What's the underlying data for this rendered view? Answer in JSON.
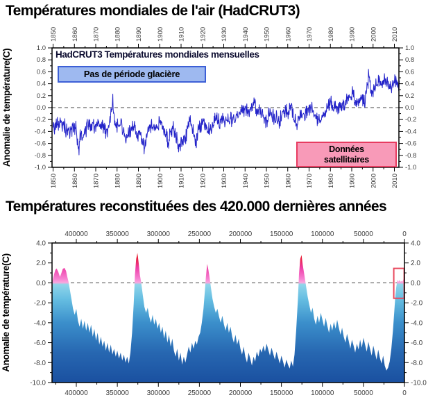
{
  "page": {
    "background": "#ffffff"
  },
  "shared": {
    "ylabel": "Anomalie de température(C)",
    "axis_color": "#000000",
    "tick_label_color": "#3c3c3c",
    "zero_line_style": "dashed"
  },
  "chart_data": [
    {
      "type": "line",
      "title": "Températures mondiales de l'air (HadCRUT3)",
      "xlabel": "",
      "ylabel": "Anomalie de température(C)",
      "x_ticks": [
        1850,
        1860,
        1870,
        1880,
        1890,
        1900,
        1910,
        1920,
        1930,
        1940,
        1950,
        1960,
        1970,
        1980,
        1990,
        2000,
        2010
      ],
      "y_ticks": [
        1.0,
        0.8,
        0.6,
        0.4,
        0.2,
        0.0,
        -0.2,
        -0.4,
        -0.6,
        -0.8,
        -1.0
      ],
      "xlim": [
        1849.5,
        2012.5
      ],
      "ylim": [
        -1.0,
        1.0
      ],
      "grid": false,
      "legend": "none",
      "line_color": "#2323c9",
      "zero_line": 0.0,
      "noise_amplitude": 0.16,
      "annotations": {
        "series_label": {
          "text": "HadCRUT3 Températures mondiales mensuelles",
          "color": "#0d0d30"
        },
        "no_ice": {
          "text": "Pas de période glacière",
          "fill": "#9eb9f0",
          "border": "#3c5fd6"
        },
        "satellite": {
          "line1": "Données",
          "line2": "satellitaires",
          "fill": "#f89ab8",
          "border": "#e73b60",
          "x_from": 1978,
          "x_to": 2012
        }
      },
      "anchors": [
        [
          1850,
          -0.35
        ],
        [
          1852,
          -0.28
        ],
        [
          1854,
          -0.25
        ],
        [
          1856,
          -0.35
        ],
        [
          1858,
          -0.4
        ],
        [
          1860,
          -0.3
        ],
        [
          1861,
          -0.4
        ],
        [
          1862,
          -0.75
        ],
        [
          1863,
          -0.35
        ],
        [
          1864,
          -0.5
        ],
        [
          1866,
          -0.3
        ],
        [
          1868,
          -0.25
        ],
        [
          1870,
          -0.3
        ],
        [
          1872,
          -0.25
        ],
        [
          1874,
          -0.38
        ],
        [
          1876,
          -0.4
        ],
        [
          1877,
          -0.08
        ],
        [
          1878,
          0.12
        ],
        [
          1879,
          -0.3
        ],
        [
          1880,
          -0.3
        ],
        [
          1882,
          -0.28
        ],
        [
          1884,
          -0.55
        ],
        [
          1886,
          -0.42
        ],
        [
          1888,
          -0.32
        ],
        [
          1890,
          -0.45
        ],
        [
          1892,
          -0.55
        ],
        [
          1893,
          -0.7
        ],
        [
          1894,
          -0.5
        ],
        [
          1896,
          -0.28
        ],
        [
          1898,
          -0.38
        ],
        [
          1900,
          -0.22
        ],
        [
          1902,
          -0.38
        ],
        [
          1904,
          -0.55
        ],
        [
          1906,
          -0.32
        ],
        [
          1908,
          -0.55
        ],
        [
          1909,
          -0.68
        ],
        [
          1910,
          -0.55
        ],
        [
          1912,
          -0.48
        ],
        [
          1914,
          -0.25
        ],
        [
          1916,
          -0.4
        ],
        [
          1917,
          -0.62
        ],
        [
          1918,
          -0.4
        ],
        [
          1920,
          -0.3
        ],
        [
          1922,
          -0.32
        ],
        [
          1924,
          -0.32
        ],
        [
          1926,
          -0.15
        ],
        [
          1928,
          -0.25
        ],
        [
          1930,
          -0.18
        ],
        [
          1932,
          -0.2
        ],
        [
          1934,
          -0.18
        ],
        [
          1936,
          -0.18
        ],
        [
          1938,
          -0.05
        ],
        [
          1940,
          -0.02
        ],
        [
          1942,
          -0.05
        ],
        [
          1944,
          0.08
        ],
        [
          1946,
          -0.05
        ],
        [
          1948,
          -0.12
        ],
        [
          1950,
          -0.22
        ],
        [
          1952,
          -0.05
        ],
        [
          1954,
          -0.18
        ],
        [
          1956,
          -0.25
        ],
        [
          1958,
          -0.02
        ],
        [
          1960,
          -0.08
        ],
        [
          1962,
          -0.02
        ],
        [
          1964,
          -0.28
        ],
        [
          1966,
          -0.12
        ],
        [
          1968,
          -0.12
        ],
        [
          1970,
          -0.02
        ],
        [
          1972,
          -0.05
        ],
        [
          1974,
          -0.22
        ],
        [
          1976,
          -0.18
        ],
        [
          1978,
          -0.05
        ],
        [
          1980,
          0.1
        ],
        [
          1982,
          0.02
        ],
        [
          1984,
          -0.02
        ],
        [
          1986,
          0.05
        ],
        [
          1988,
          0.15
        ],
        [
          1990,
          0.25
        ],
        [
          1992,
          0.08
        ],
        [
          1994,
          0.15
        ],
        [
          1996,
          0.12
        ],
        [
          1997,
          0.3
        ],
        [
          1998,
          0.55
        ],
        [
          1999,
          0.25
        ],
        [
          2000,
          0.28
        ],
        [
          2002,
          0.45
        ],
        [
          2004,
          0.42
        ],
        [
          2006,
          0.45
        ],
        [
          2008,
          0.32
        ],
        [
          2010,
          0.48
        ],
        [
          2011,
          0.42
        ],
        [
          2012.5,
          0.3
        ]
      ]
    },
    {
      "type": "area",
      "title": "Températures reconstituées des 420.000 dernières années",
      "xlabel": "",
      "ylabel": "Anomalie de température(C)",
      "x_ticks": [
        400000,
        350000,
        300000,
        250000,
        200000,
        150000,
        100000,
        50000,
        0
      ],
      "y_ticks": [
        4.0,
        2.0,
        0.0,
        -2.0,
        -4.0,
        -6.0,
        -8.0,
        -10.0
      ],
      "xlim_years_bp": [
        430000,
        0
      ],
      "ylim": [
        -10.0,
        4.0
      ],
      "grid": false,
      "legend": "none",
      "zero_line": 0.0,
      "gradient_stops": [
        [
          4.0,
          "#dc1020"
        ],
        [
          2.6,
          "#e8182e"
        ],
        [
          1.5,
          "#ee3fa8"
        ],
        [
          0.45,
          "#f67fd0"
        ],
        [
          0.02,
          "#f9a6dd"
        ],
        [
          -0.15,
          "#90d5ea"
        ],
        [
          -1.6,
          "#66bee2"
        ],
        [
          -4.0,
          "#3b8fcb"
        ],
        [
          -7.0,
          "#2767b1"
        ],
        [
          -10.0,
          "#1a50a0"
        ]
      ],
      "highlight_rect": {
        "from_year": 13000,
        "to_year": 300,
        "top": 1.45,
        "bottom": -1.55,
        "color": "#e8495e"
      },
      "points_kyr": [
        [
          430,
          -1.2
        ],
        [
          429,
          0.2
        ],
        [
          427,
          0.9
        ],
        [
          425.5,
          1.3
        ],
        [
          424,
          1.45
        ],
        [
          422,
          1.1
        ],
        [
          420,
          0.6
        ],
        [
          418.5,
          0.9
        ],
        [
          416.5,
          1.4
        ],
        [
          414.5,
          1.5
        ],
        [
          412.5,
          1.2
        ],
        [
          411,
          0.6
        ],
        [
          409.5,
          0.1
        ],
        [
          408,
          -0.6
        ],
        [
          406,
          -1.6
        ],
        [
          404,
          -2.6
        ],
        [
          402,
          -3.2
        ],
        [
          400,
          -2.6
        ],
        [
          398,
          -3.8
        ],
        [
          396,
          -4.4
        ],
        [
          394,
          -3.6
        ],
        [
          392,
          -4.6
        ],
        [
          390,
          -3.8
        ],
        [
          388,
          -4.8
        ],
        [
          386,
          -4.0
        ],
        [
          384,
          -5.0
        ],
        [
          382,
          -4.2
        ],
        [
          380,
          -5.4
        ],
        [
          378,
          -4.6
        ],
        [
          376,
          -5.8
        ],
        [
          374,
          -5.0
        ],
        [
          372,
          -6.2
        ],
        [
          370,
          -5.4
        ],
        [
          368,
          -6.4
        ],
        [
          366,
          -5.8
        ],
        [
          364,
          -6.8
        ],
        [
          362,
          -6.0
        ],
        [
          360,
          -7.0
        ],
        [
          358,
          -6.2
        ],
        [
          356,
          -7.2
        ],
        [
          354,
          -6.6
        ],
        [
          352,
          -7.4
        ],
        [
          350,
          -6.8
        ],
        [
          348,
          -7.6
        ],
        [
          346,
          -7.0
        ],
        [
          344,
          -7.8
        ],
        [
          342,
          -7.2
        ],
        [
          340,
          -8.0
        ],
        [
          338,
          -7.4
        ],
        [
          336,
          -8.1
        ],
        [
          334,
          -7.0
        ],
        [
          332,
          -5.0
        ],
        [
          330,
          -2.0
        ],
        [
          328.5,
          0.8
        ],
        [
          327,
          2.4
        ],
        [
          325.5,
          3.0
        ],
        [
          324,
          2.0
        ],
        [
          322.5,
          0.8
        ],
        [
          321,
          0.1
        ],
        [
          319,
          -1.2
        ],
        [
          317,
          -2.4
        ],
        [
          315,
          -3.0
        ],
        [
          313,
          -2.5
        ],
        [
          311,
          -3.4
        ],
        [
          309,
          -4.0
        ],
        [
          307,
          -3.2
        ],
        [
          305,
          -4.2
        ],
        [
          303,
          -3.6
        ],
        [
          301,
          -4.6
        ],
        [
          299,
          -4.0
        ],
        [
          297,
          -5.0
        ],
        [
          295,
          -4.4
        ],
        [
          293,
          -5.6
        ],
        [
          291,
          -4.8
        ],
        [
          289,
          -6.0
        ],
        [
          287,
          -5.2
        ],
        [
          285,
          -6.4
        ],
        [
          283,
          -5.6
        ],
        [
          281,
          -6.8
        ],
        [
          279,
          -7.4
        ],
        [
          277,
          -6.6
        ],
        [
          275,
          -7.8
        ],
        [
          273,
          -7.0
        ],
        [
          271,
          -8.2
        ],
        [
          269,
          -7.4
        ],
        [
          267,
          -8.0
        ],
        [
          265,
          -7.2
        ],
        [
          263,
          -6.4
        ],
        [
          261,
          -7.0
        ],
        [
          259,
          -6.0
        ],
        [
          257,
          -6.6
        ],
        [
          255,
          -5.8
        ],
        [
          253,
          -6.2
        ],
        [
          251,
          -5.4
        ],
        [
          249,
          -5.0
        ],
        [
          247,
          -4.0
        ],
        [
          245,
          -2.6
        ],
        [
          243.5,
          -1.0
        ],
        [
          242,
          0.6
        ],
        [
          240.5,
          1.9
        ],
        [
          239,
          1.3
        ],
        [
          237.5,
          0.5
        ],
        [
          236,
          -0.4
        ],
        [
          234,
          -1.6
        ],
        [
          232,
          -2.4
        ],
        [
          230,
          -3.0
        ],
        [
          228,
          -2.6
        ],
        [
          226,
          -3.4
        ],
        [
          224,
          -4.0
        ],
        [
          222,
          -3.3
        ],
        [
          220,
          -4.2
        ],
        [
          218,
          -4.8
        ],
        [
          216,
          -4.0
        ],
        [
          214,
          -5.0
        ],
        [
          212,
          -4.4
        ],
        [
          210,
          -5.4
        ],
        [
          208,
          -6.0
        ],
        [
          206,
          -5.2
        ],
        [
          204,
          -6.2
        ],
        [
          202,
          -5.6
        ],
        [
          200,
          -6.6
        ],
        [
          198,
          -7.2
        ],
        [
          196,
          -6.4
        ],
        [
          194,
          -7.4
        ],
        [
          192,
          -8.0
        ],
        [
          190,
          -7.0
        ],
        [
          188,
          -7.6
        ],
        [
          186,
          -8.3
        ],
        [
          184,
          -7.4
        ],
        [
          182,
          -7.9
        ],
        [
          180,
          -6.9
        ],
        [
          178,
          -7.4
        ],
        [
          176,
          -6.6
        ],
        [
          174,
          -7.0
        ],
        [
          172,
          -6.3
        ],
        [
          170,
          -6.9
        ],
        [
          168,
          -6.1
        ],
        [
          166,
          -6.7
        ],
        [
          164,
          -7.3
        ],
        [
          162,
          -6.5
        ],
        [
          160,
          -7.1
        ],
        [
          158,
          -7.7
        ],
        [
          156,
          -6.9
        ],
        [
          154,
          -7.5
        ],
        [
          152,
          -8.1
        ],
        [
          150,
          -7.3
        ],
        [
          148,
          -7.9
        ],
        [
          146,
          -8.5
        ],
        [
          144,
          -7.7
        ],
        [
          142,
          -8.2
        ],
        [
          140,
          -8.6
        ],
        [
          138,
          -7.8
        ],
        [
          136,
          -8.4
        ],
        [
          134,
          -7.2
        ],
        [
          132,
          -4.8
        ],
        [
          130,
          -1.8
        ],
        [
          128.5,
          0.9
        ],
        [
          127,
          2.4
        ],
        [
          125.5,
          2.8
        ],
        [
          124,
          1.8
        ],
        [
          122,
          0.8
        ],
        [
          120,
          -0.3
        ],
        [
          118,
          -1.4
        ],
        [
          116,
          -2.2
        ],
        [
          114,
          -3.0
        ],
        [
          112,
          -2.5
        ],
        [
          110,
          -3.6
        ],
        [
          108,
          -4.2
        ],
        [
          106,
          -3.3
        ],
        [
          104,
          -4.0
        ],
        [
          102,
          -3.0
        ],
        [
          100,
          -3.7
        ],
        [
          98,
          -4.4
        ],
        [
          96,
          -3.5
        ],
        [
          94,
          -4.3
        ],
        [
          92,
          -5.0
        ],
        [
          90,
          -4.1
        ],
        [
          88,
          -4.8
        ],
        [
          86,
          -3.9
        ],
        [
          84,
          -4.6
        ],
        [
          82,
          -3.7
        ],
        [
          80,
          -4.5
        ],
        [
          78,
          -5.2
        ],
        [
          76,
          -4.5
        ],
        [
          74,
          -5.4
        ],
        [
          72,
          -6.0
        ],
        [
          70,
          -5.1
        ],
        [
          68,
          -5.8
        ],
        [
          66,
          -6.6
        ],
        [
          64,
          -5.7
        ],
        [
          62,
          -6.3
        ],
        [
          60,
          -7.0
        ],
        [
          58,
          -6.1
        ],
        [
          56,
          -6.7
        ],
        [
          54,
          -5.7
        ],
        [
          52,
          -6.5
        ],
        [
          50,
          -5.5
        ],
        [
          48,
          -6.2
        ],
        [
          46,
          -6.9
        ],
        [
          44,
          -5.9
        ],
        [
          42,
          -6.6
        ],
        [
          40,
          -7.3
        ],
        [
          38,
          -6.3
        ],
        [
          36,
          -7.0
        ],
        [
          34,
          -7.7
        ],
        [
          32,
          -6.7
        ],
        [
          30,
          -7.5
        ],
        [
          28,
          -8.1
        ],
        [
          26,
          -7.3
        ],
        [
          24,
          -8.3
        ],
        [
          22,
          -8.8
        ],
        [
          20,
          -8.5
        ],
        [
          18,
          -7.9
        ],
        [
          16,
          -6.6
        ],
        [
          14,
          -4.8
        ],
        [
          12,
          -2.4
        ],
        [
          11,
          -1.2
        ],
        [
          10,
          -0.4
        ],
        [
          9,
          0.1
        ],
        [
          8,
          0.3
        ],
        [
          7,
          0.1
        ],
        [
          6,
          0.3
        ],
        [
          5,
          0.1
        ],
        [
          4,
          0.2
        ],
        [
          3,
          0.1
        ],
        [
          2,
          0.2
        ],
        [
          1,
          0.4
        ],
        [
          0.5,
          0.9
        ],
        [
          0,
          0.5
        ]
      ]
    }
  ]
}
